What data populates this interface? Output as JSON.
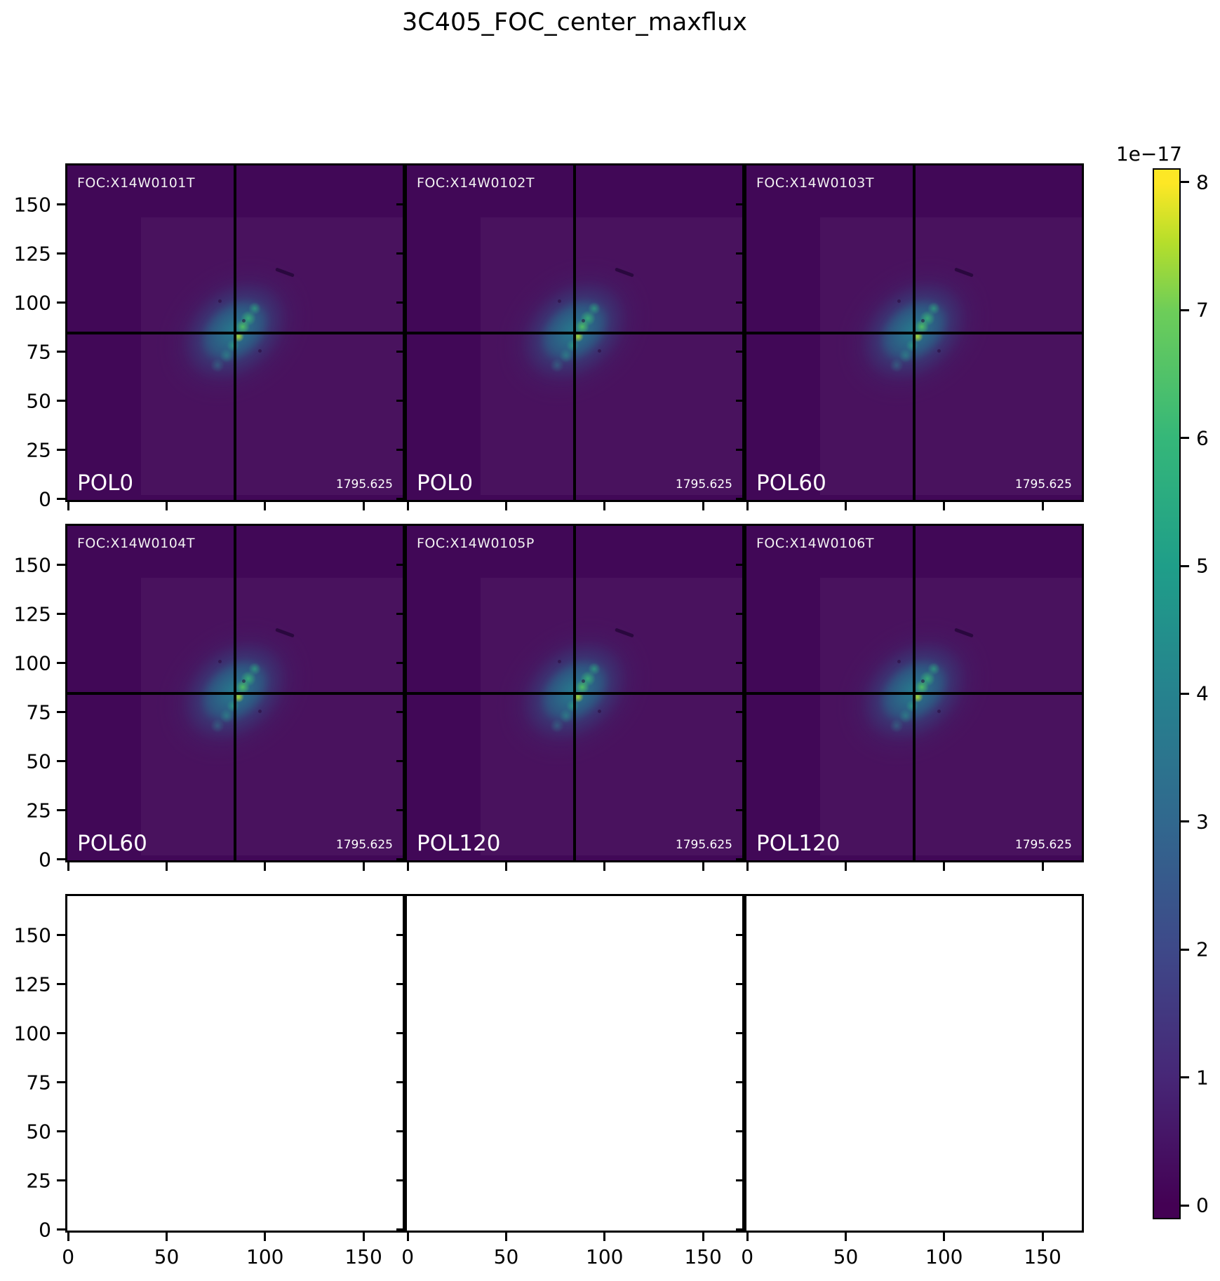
{
  "title": "3C405_FOC_center_maxflux",
  "panels": [
    {
      "foc": "FOC:X14W0101T",
      "pol": "POL0",
      "value": "1795.625"
    },
    {
      "foc": "FOC:X14W0102T",
      "pol": "POL0",
      "value": "1795.625"
    },
    {
      "foc": "FOC:X14W0103T",
      "pol": "POL60",
      "value": "1795.625"
    },
    {
      "foc": "FOC:X14W0104T",
      "pol": "POL60",
      "value": "1795.625"
    },
    {
      "foc": "FOC:X14W0105P",
      "pol": "POL120",
      "value": "1795.625"
    },
    {
      "foc": "FOC:X14W0106T",
      "pol": "POL120",
      "value": "1795.625"
    }
  ],
  "axes": {
    "x_tick_labels": [
      "0",
      "50",
      "100",
      "150"
    ],
    "y_tick_labels": [
      "0",
      "25",
      "50",
      "75",
      "100",
      "125",
      "150"
    ]
  },
  "colorbar": {
    "offset": "1e−17",
    "tick_labels": [
      "0",
      "1",
      "2",
      "3",
      "4",
      "5",
      "6",
      "7",
      "8"
    ],
    "colormap": "viridis"
  },
  "colors": {
    "panel_background": "#410857",
    "viridis_stops": [
      "#440154",
      "#472777",
      "#3e4989",
      "#31688e",
      "#26828e",
      "#1f9e89",
      "#35b779",
      "#6dcd59",
      "#b5de2b",
      "#fde725"
    ],
    "crosshair": "#000000",
    "label_text": "#ffffff"
  },
  "chart_data": {
    "type": "heatmap",
    "title": "3C405_FOC_center_maxflux",
    "grid": {
      "rows": 3,
      "cols": 3,
      "filled_panels": 6,
      "empty_panels": 3
    },
    "panels": [
      {
        "row": 1,
        "col": 1,
        "dataset": "FOC:X14W0101T",
        "polarizer": "POL0",
        "exposure": "1795.625",
        "crosshair_xy": [
          85,
          85
        ]
      },
      {
        "row": 1,
        "col": 2,
        "dataset": "FOC:X14W0102T",
        "polarizer": "POL0",
        "exposure": "1795.625",
        "crosshair_xy": [
          85,
          85
        ]
      },
      {
        "row": 1,
        "col": 3,
        "dataset": "FOC:X14W0103T",
        "polarizer": "POL60",
        "exposure": "1795.625",
        "crosshair_xy": [
          85,
          85
        ]
      },
      {
        "row": 2,
        "col": 1,
        "dataset": "FOC:X14W0104T",
        "polarizer": "POL60",
        "exposure": "1795.625",
        "crosshair_xy": [
          85,
          85
        ]
      },
      {
        "row": 2,
        "col": 2,
        "dataset": "FOC:X14W0105P",
        "polarizer": "POL120",
        "exposure": "1795.625",
        "crosshair_xy": [
          85,
          85
        ]
      },
      {
        "row": 2,
        "col": 3,
        "dataset": "FOC:X14W0106T",
        "polarizer": "POL120",
        "exposure": "1795.625",
        "crosshair_xy": [
          85,
          85
        ]
      }
    ],
    "x_ticks": [
      0,
      50,
      100,
      150
    ],
    "y_ticks": [
      0,
      25,
      50,
      75,
      100,
      125,
      150
    ],
    "axis_range": [
      0,
      170
    ],
    "colorbar": {
      "scale_factor": "1e−17",
      "ticks": [
        0,
        1,
        2,
        3,
        4,
        5,
        6,
        7,
        8
      ],
      "colormap": "viridis"
    },
    "legend_position": "right",
    "grid_lines": false
  }
}
